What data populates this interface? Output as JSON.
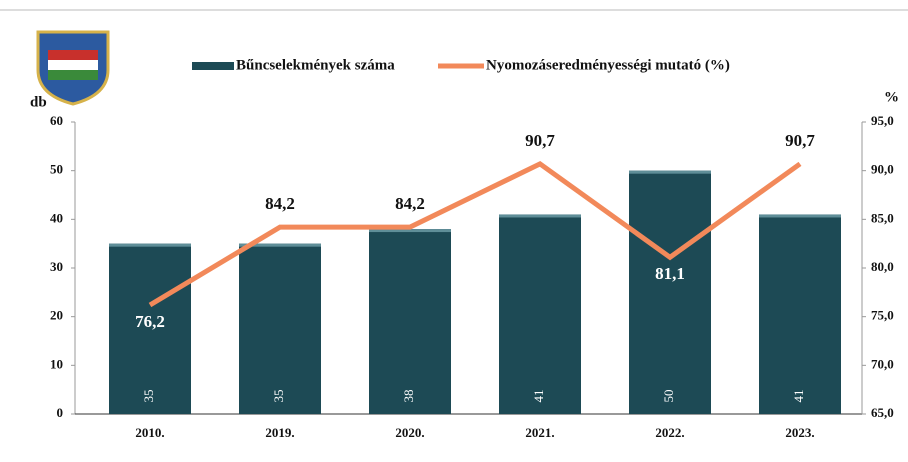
{
  "chart_data": {
    "type": "bar",
    "categories": [
      "2010.",
      "2019.",
      "2020.",
      "2021.",
      "2022.",
      "2023."
    ],
    "series": [
      {
        "name": "Bűncselekmények száma",
        "color": "#1d4a55",
        "values": [
          35,
          35,
          38,
          41,
          50,
          41
        ]
      },
      {
        "name": "Nyomozáseredményességi mutató (%)",
        "type": "line",
        "axis": "y2",
        "color": "#f2895a",
        "values": [
          76.2,
          84.2,
          84.2,
          90.7,
          81.1,
          90.7
        ],
        "value_labels": [
          "76,2",
          "84,2",
          "84,2",
          "90,7",
          "81,1",
          "90,7"
        ]
      }
    ],
    "y_label": "db",
    "y2_label": "%",
    "ylim": [
      0,
      60
    ],
    "yticks": [
      0,
      10,
      20,
      30,
      40,
      50,
      60
    ],
    "y2lim": [
      65,
      95
    ],
    "y2ticks": [
      {
        "value": 65,
        "label": "65,0"
      },
      {
        "value": 70,
        "label": "70,0"
      },
      {
        "value": 75,
        "label": "75,0"
      },
      {
        "value": 80,
        "label": "80,0"
      },
      {
        "value": 85,
        "label": "85,0"
      },
      {
        "value": 90,
        "label": "90,0"
      },
      {
        "value": 95,
        "label": "95,0"
      }
    ]
  }
}
